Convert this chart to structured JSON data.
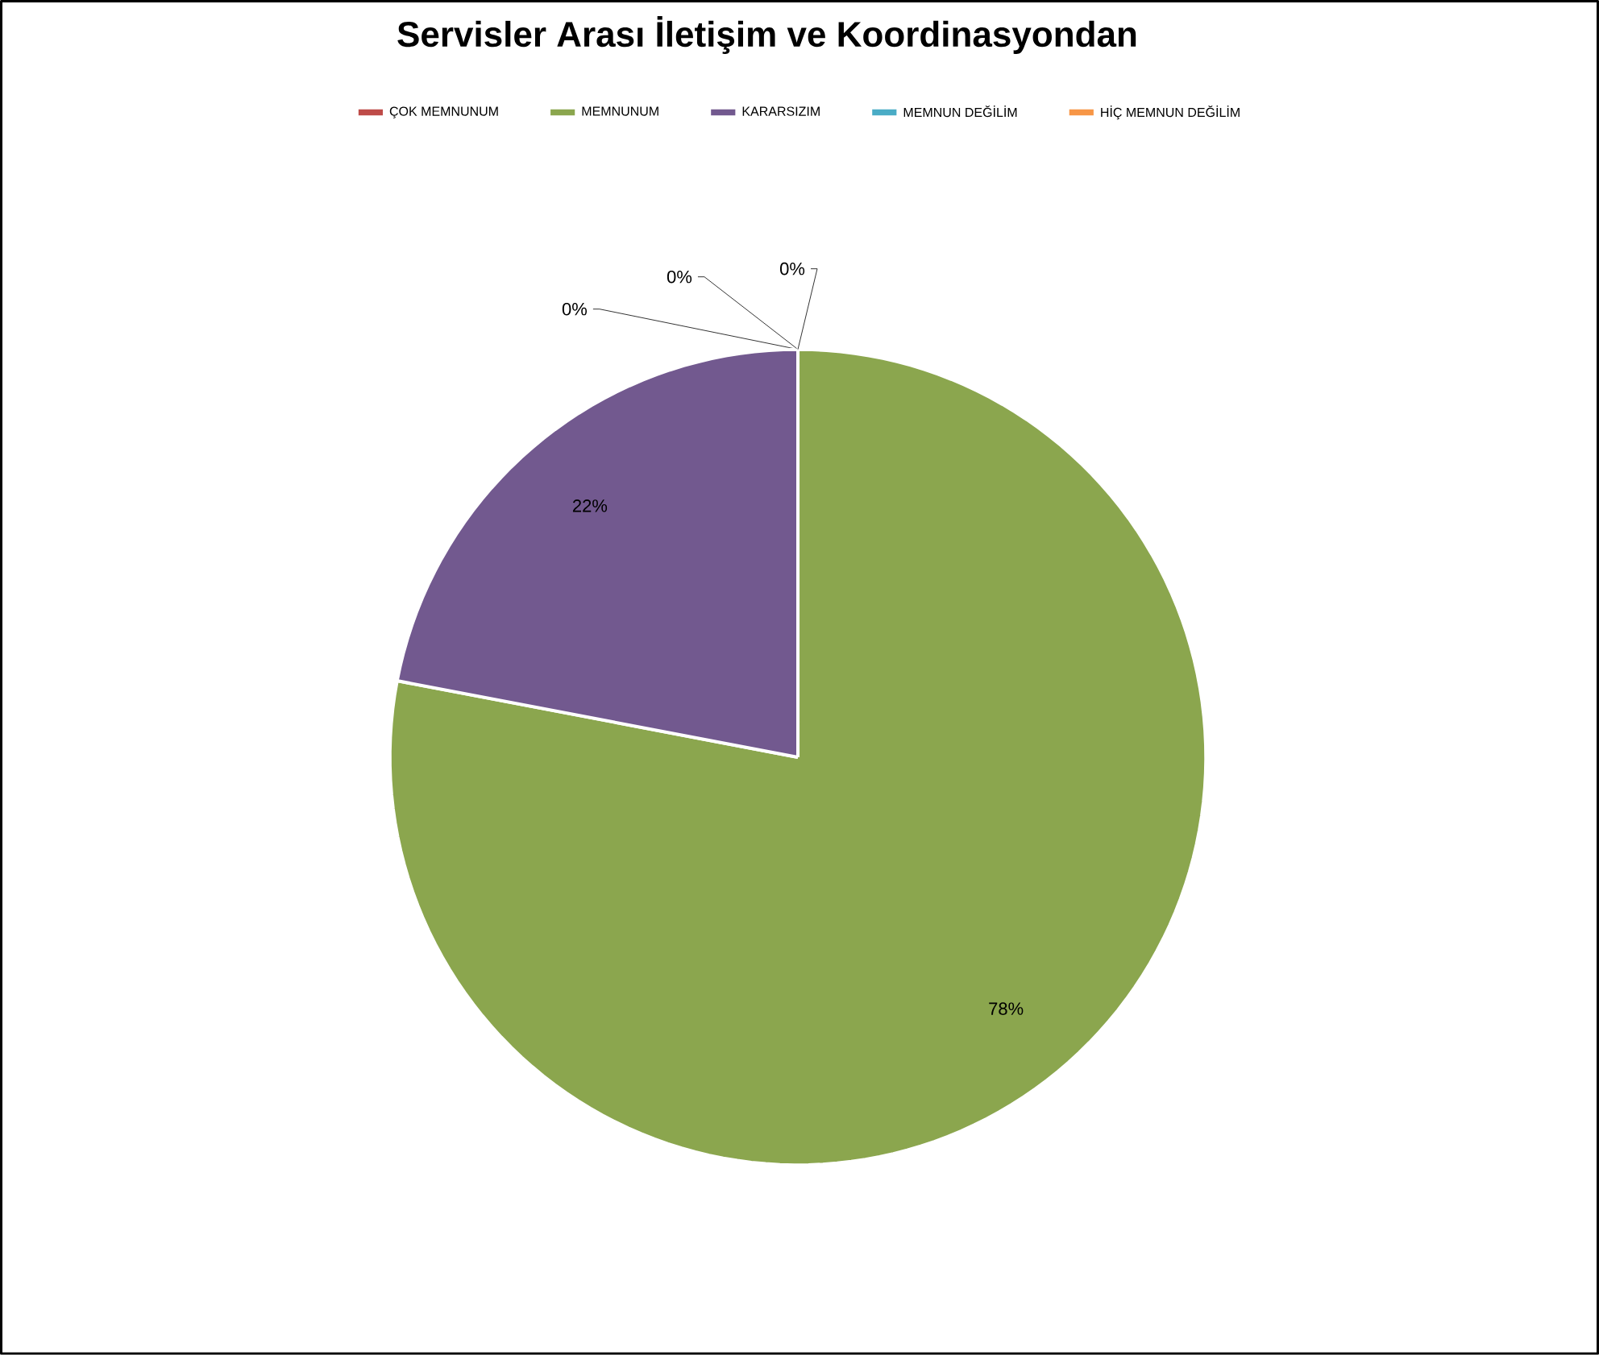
{
  "chart_data": {
    "type": "pie",
    "title": "Servisler Arası İletişim ve Koordinasyondan",
    "categories": [
      "ÇOK MEMNUNUM",
      "MEMNUNUM",
      "KARARSIZIM",
      "MEMNUN DEĞİLİM",
      "HİÇ MEMNUN DEĞİLİM"
    ],
    "values": [
      0,
      78,
      22,
      0,
      0
    ],
    "value_labels": [
      "0%",
      "78%",
      "22%",
      "0%",
      "0%"
    ],
    "colors": [
      "#be4b48",
      "#8ba64e",
      "#72598f",
      "#4aacc6",
      "#f79646"
    ],
    "legend": "top"
  }
}
